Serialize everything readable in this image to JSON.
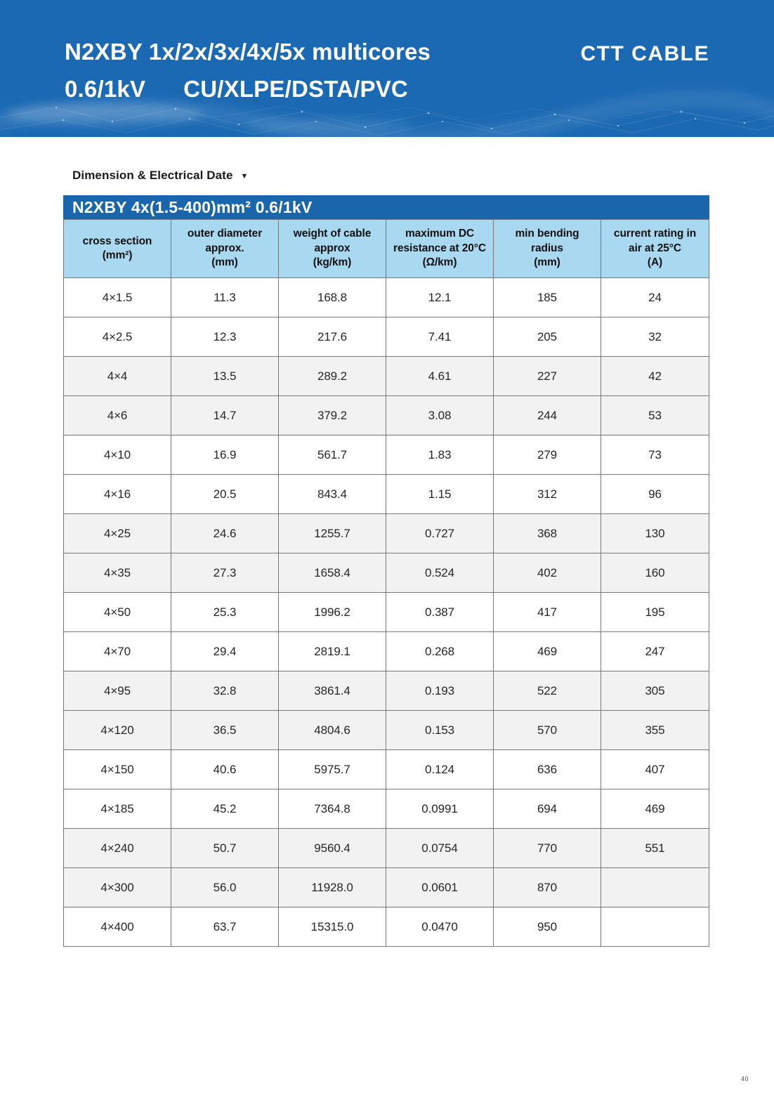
{
  "banner": {
    "product_title_line1": "N2XBY 1x/2x/3x/4x/5x multicores",
    "voltage": "0.6/1kV",
    "construction": "CU/XLPE/DSTA/PVC",
    "brand": "CTT CABLE"
  },
  "section": {
    "label": "Dimension & Electrical Date",
    "dropdown_arrow": "▼"
  },
  "table": {
    "title": "N2XBY 4x(1.5-400)mm² 0.6/1kV",
    "columns": [
      {
        "id": "cross_section",
        "lines": [
          "cross section",
          "(mm²)"
        ]
      },
      {
        "id": "outer_diameter",
        "lines": [
          "outer diameter",
          "approx.",
          "(mm)"
        ]
      },
      {
        "id": "cable_weight",
        "lines": [
          "weight of cable",
          "approx",
          "(kg/km)"
        ]
      },
      {
        "id": "dc_resistance",
        "lines": [
          "maximum DC",
          "resistance at 20°C",
          "(Ω/km)"
        ]
      },
      {
        "id": "min_bending_radius",
        "lines": [
          "min bending",
          "radius",
          "(mm)"
        ]
      },
      {
        "id": "current_rating",
        "lines": [
          "current rating in",
          "air at 25°C",
          "(A)"
        ]
      }
    ],
    "rows": [
      [
        "4×1.5",
        "11.3",
        "168.8",
        "12.1",
        "185",
        "24"
      ],
      [
        "4×2.5",
        "12.3",
        "217.6",
        "7.41",
        "205",
        "32"
      ],
      [
        "4×4",
        "13.5",
        "289.2",
        "4.61",
        "227",
        "42"
      ],
      [
        "4×6",
        "14.7",
        "379.2",
        "3.08",
        "244",
        "53"
      ],
      [
        "4×10",
        "16.9",
        "561.7",
        "1.83",
        "279",
        "73"
      ],
      [
        "4×16",
        "20.5",
        "843.4",
        "1.15",
        "312",
        "96"
      ],
      [
        "4×25",
        "24.6",
        "1255.7",
        "0.727",
        "368",
        "130"
      ],
      [
        "4×35",
        "27.3",
        "1658.4",
        "0.524",
        "402",
        "160"
      ],
      [
        "4×50",
        "25.3",
        "1996.2",
        "0.387",
        "417",
        "195"
      ],
      [
        "4×70",
        "29.4",
        "2819.1",
        "0.268",
        "469",
        "247"
      ],
      [
        "4×95",
        "32.8",
        "3861.4",
        "0.193",
        "522",
        "305"
      ],
      [
        "4×120",
        "36.5",
        "4804.6",
        "0.153",
        "570",
        "355"
      ],
      [
        "4×150",
        "40.6",
        "5975.7",
        "0.124",
        "636",
        "407"
      ],
      [
        "4×185",
        "45.2",
        "7364.8",
        "0.0991",
        "694",
        "469"
      ],
      [
        "4×240",
        "50.7",
        "9560.4",
        "0.0754",
        "770",
        "551"
      ],
      [
        "4×300",
        "56.0",
        "11928.0",
        "0.0601",
        "870",
        ""
      ],
      [
        "4×400",
        "63.7",
        "15315.0",
        "0.0470",
        "950",
        ""
      ]
    ]
  },
  "footer": {
    "page_number": "40"
  },
  "colors": {
    "banner_blue": "#1b69b3",
    "table_title_blue": "#1966ad",
    "header_light_blue": "#a9d9f1",
    "row_shaded_gray": "#f2f2f2",
    "border_gray": "#777777"
  }
}
